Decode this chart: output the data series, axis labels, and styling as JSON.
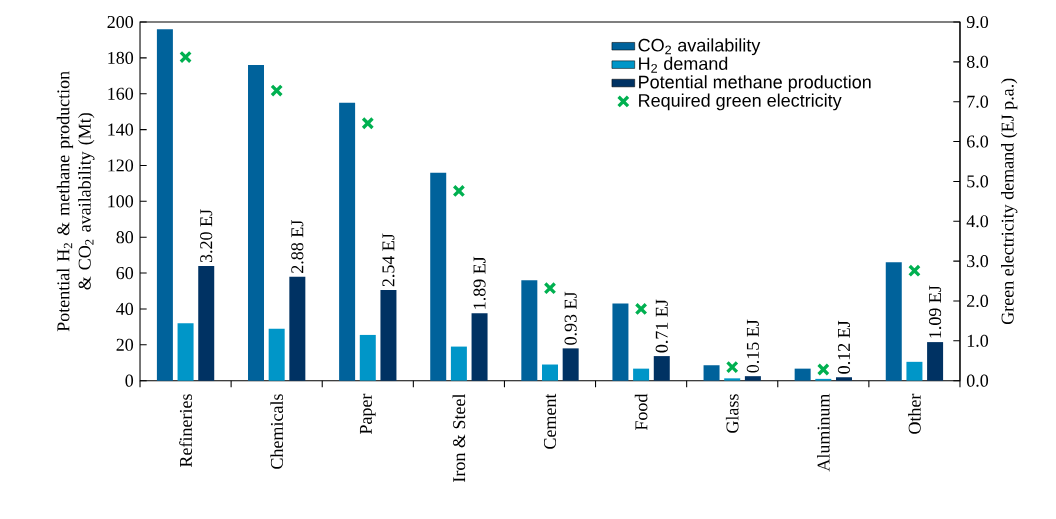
{
  "chart_data": {
    "type": "bar",
    "categories": [
      "Refineries",
      "Chemicals",
      "Paper",
      "Iron & Steel",
      "Cement",
      "Food",
      "Glass",
      "Aluminum",
      "Other"
    ],
    "ylabel": "Potential H$_{2}$ & methane production & CO$_{2}$ availability (Mt)",
    "y2label": "Green electricity demand (EJ p.a.)",
    "ylim": [
      0,
      200
    ],
    "yticks": [
      0,
      20,
      40,
      60,
      80,
      100,
      120,
      140,
      160,
      180,
      200
    ],
    "y2lim": [
      0,
      9
    ],
    "y2ticks": [
      {
        "value": 0,
        "label": "0.0"
      },
      {
        "value": 1,
        "label": "1.0"
      },
      {
        "value": 2,
        "label": "2.0"
      },
      {
        "value": 3,
        "label": "3.0"
      },
      {
        "value": 4,
        "label": "4.0"
      },
      {
        "value": 5,
        "label": "5.0"
      },
      {
        "value": 6,
        "label": "6.0"
      },
      {
        "value": 7,
        "label": "7.0"
      },
      {
        "value": 8,
        "label": "8.0"
      },
      {
        "value": 9,
        "label": "9.0"
      }
    ],
    "legend": "top right",
    "annotations": [
      "3.20 EJ",
      "2.88 EJ",
      "2.54 EJ",
      "1.89 EJ",
      "0.93 EJ",
      "0.71 EJ",
      "0.15 EJ",
      "0.12 EJ",
      "1.09 EJ"
    ],
    "series": [
      {
        "name": "CO$_{2}$ availability",
        "color": "#00629b",
        "values": [
          196,
          176,
          155,
          116,
          56,
          43,
          8.6,
          6.7,
          66
        ]
      },
      {
        "name": "H$_{2}$ demand",
        "color": "#0096c8",
        "values": [
          32,
          29,
          25.5,
          19,
          9,
          6.7,
          1.3,
          1,
          10.5
        ]
      },
      {
        "name": "Potential methane production",
        "color": "#003263",
        "values": [
          64,
          58,
          50.5,
          37.6,
          18,
          13.7,
          2.5,
          1.9,
          21.5
        ]
      },
      {
        "name": "Required green electricity",
        "type": "scatter",
        "axis": "y2",
        "marker": "cross",
        "color": "#00b050",
        "x": [
          "Refineries",
          "Chemicals",
          "Paper",
          "Iron & Steel",
          "Cement",
          "Food",
          "Glass",
          "Aluminum",
          "Other"
        ],
        "values": [
          8.12,
          7.28,
          6.46,
          4.76,
          2.32,
          1.8,
          0.34,
          0.28,
          2.76
        ]
      }
    ]
  }
}
